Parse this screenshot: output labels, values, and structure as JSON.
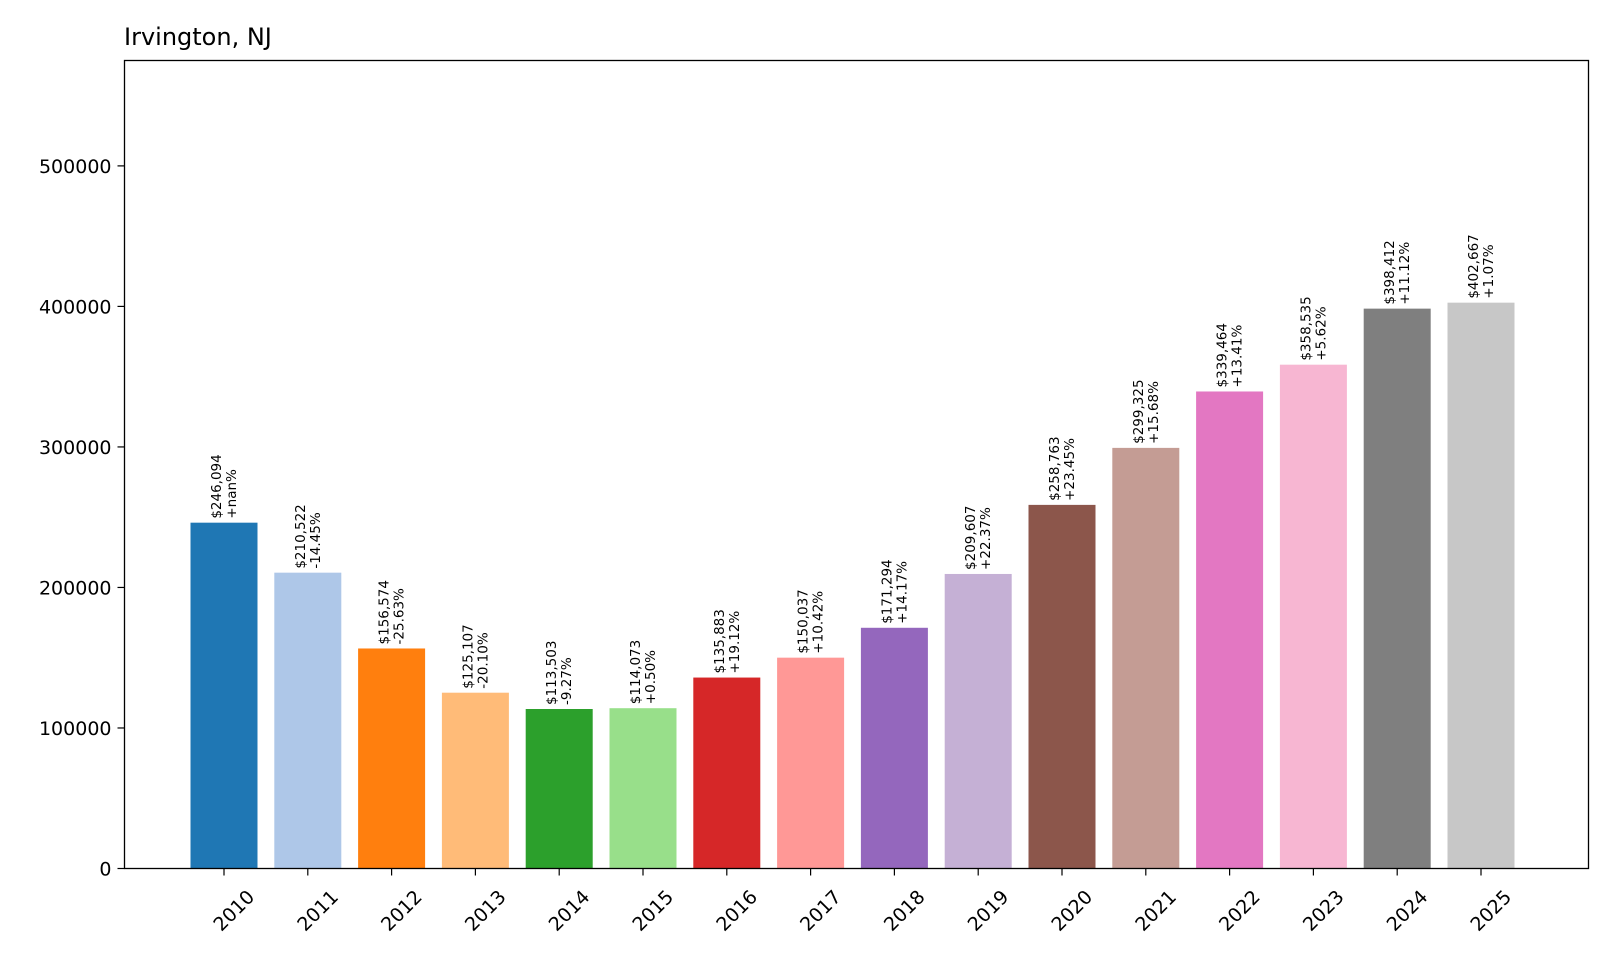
{
  "chart_data": {
    "type": "bar",
    "title": "Irvington, NJ",
    "xlabel": "",
    "ylabel": "",
    "ylim": [
      0,
      575000
    ],
    "yticks": [
      0,
      100000,
      200000,
      300000,
      400000,
      500000
    ],
    "ytick_labels": [
      "0",
      "100000",
      "200000",
      "300000",
      "400000",
      "500000"
    ],
    "grid": false,
    "categories": [
      "2010",
      "2011",
      "2012",
      "2013",
      "2014",
      "2015",
      "2016",
      "2017",
      "2018",
      "2019",
      "2020",
      "2021",
      "2022",
      "2023",
      "2024",
      "2025"
    ],
    "values": [
      246094,
      210522,
      156574,
      125107,
      113503,
      114073,
      135883,
      150037,
      171294,
      209607,
      258763,
      299325,
      339464,
      358535,
      398412,
      402667
    ],
    "value_labels": [
      "$246,094",
      "$210,522",
      "$156,574",
      "$125,107",
      "$113,503",
      "$114,073",
      "$135,883",
      "$150,037",
      "$171,294",
      "$209,607",
      "$258,763",
      "$299,325",
      "$339,464",
      "$358,535",
      "$398,412",
      "$402,667"
    ],
    "change_labels": [
      "+nan%",
      "-14.45%",
      "-25.63%",
      "-20.10%",
      "-9.27%",
      "+0.50%",
      "+19.12%",
      "+10.42%",
      "+14.17%",
      "+22.37%",
      "+23.45%",
      "+15.68%",
      "+13.41%",
      "+5.62%",
      "+11.12%",
      "+1.07%"
    ],
    "colors": [
      "#1f77b4",
      "#aec7e8",
      "#ff7f0e",
      "#ffbb78",
      "#2ca02c",
      "#98df8a",
      "#d62728",
      "#ff9896",
      "#9467bd",
      "#c5b0d5",
      "#8c564b",
      "#c49c94",
      "#e377c2",
      "#f7b6d2",
      "#7f7f7f",
      "#c7c7c7"
    ]
  }
}
